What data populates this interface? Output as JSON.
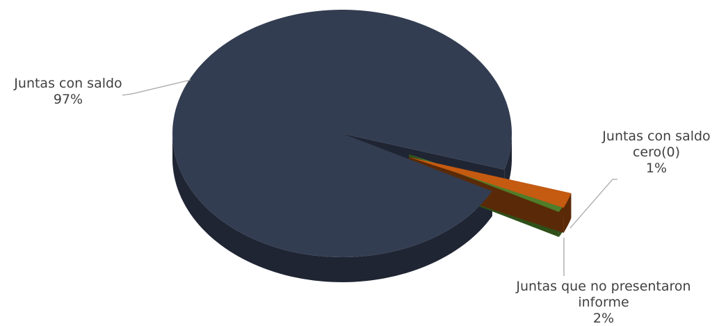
{
  "chart_data": {
    "type": "pie",
    "style": "3d-exploded",
    "title": "",
    "slices": [
      {
        "key": "con_saldo",
        "label_lines": [
          "Juntas con saldo"
        ],
        "percent_label": "97%",
        "value": 97,
        "color": "#333d51",
        "side_color": "#1f2533"
      },
      {
        "key": "saldo_cero",
        "label_lines": [
          "Juntas con saldo",
          "cero(0)"
        ],
        "percent_label": "1%",
        "value": 1,
        "color": "#4f7d2a",
        "side_color": "#2f4f19"
      },
      {
        "key": "no_informe",
        "label_lines": [
          "Juntas que no presentaron",
          "informe"
        ],
        "percent_label": "2%",
        "value": 2,
        "color": "#c55a11",
        "side_color": "#5a2a08"
      }
    ],
    "legend": "none",
    "data_labels": "outside-with-leader-lines"
  }
}
